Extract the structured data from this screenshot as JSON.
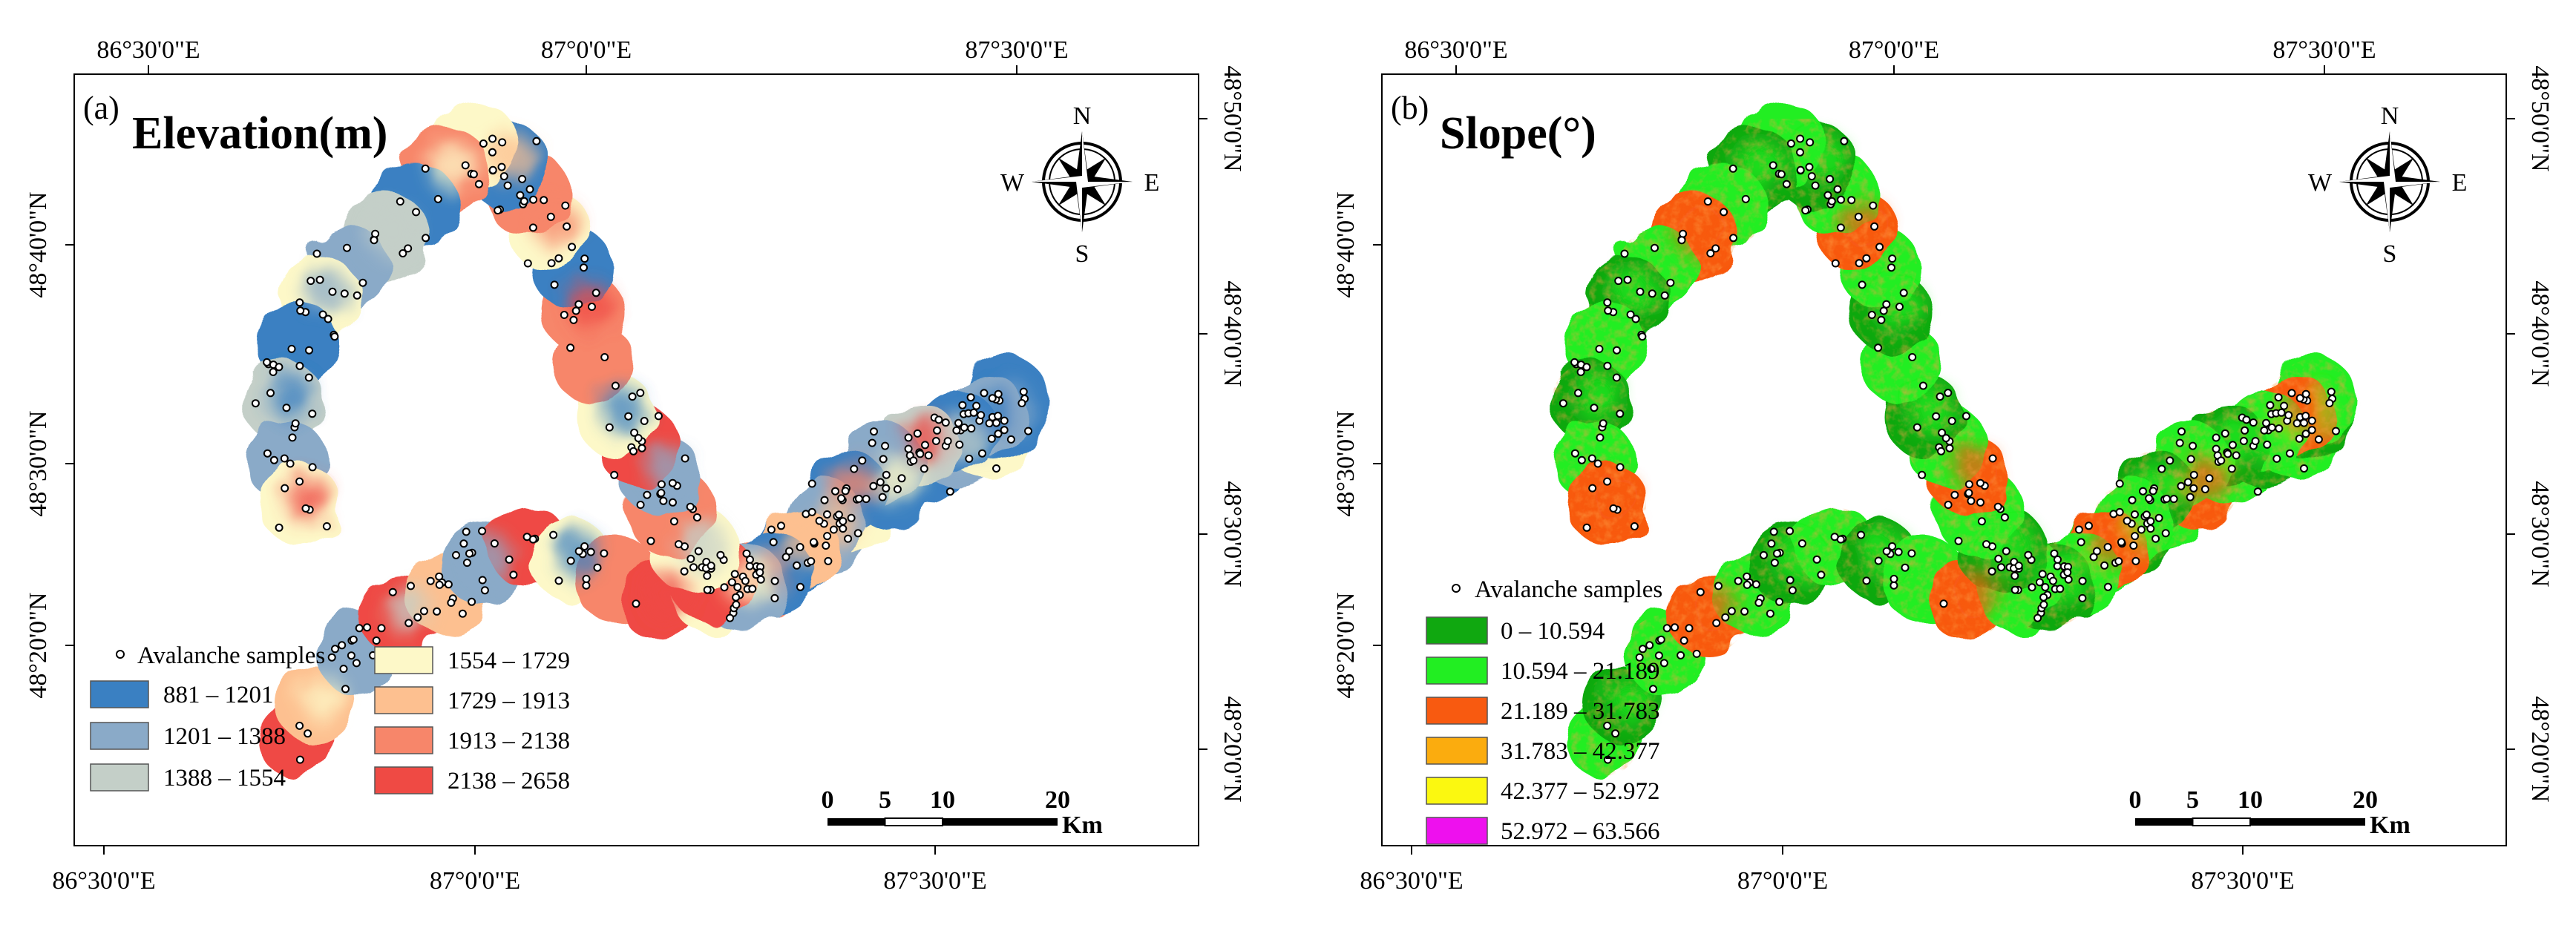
{
  "panels": [
    {
      "label": "(a)",
      "title": "Elevation(m)",
      "lon_labels_top": [
        "86°30'0\"E",
        "87°0'0\"E",
        "87°30'0\"E"
      ],
      "lon_labels_bottom": [
        "86°30'0\"E",
        "87°0'0\"E",
        "87°30'0\"E"
      ],
      "lat_labels_left": [
        "48°40'0\"N",
        "48°30'0\"N",
        "48°20'0\"N"
      ],
      "lat_labels_right": [
        "48°50'0\"N",
        "48°40'0\"N",
        "48°30'0\"N",
        "48°20'0\"N"
      ],
      "legend_samples": "Avalanche samples",
      "legend_classes": [
        {
          "label": "881 – 1201",
          "color": "#3a80c2"
        },
        {
          "label": "1201 – 1388",
          "color": "#8aaac8"
        },
        {
          "label": "1388 – 1554",
          "color": "#c4cfc8"
        },
        {
          "label": "1554 – 1729",
          "color": "#fdf8c8"
        },
        {
          "label": "1729 – 1913",
          "color": "#fdc090"
        },
        {
          "label": "1913 – 2138",
          "color": "#f7866a"
        },
        {
          "label": "2138 – 2658",
          "color": "#ef4a44"
        }
      ],
      "compass": {
        "n": "N",
        "s": "S",
        "e": "E",
        "w": "W"
      },
      "scalebar": {
        "ticks": [
          "0",
          "5",
          "10",
          "20"
        ],
        "unit": "Km"
      }
    },
    {
      "label": "(b)",
      "title": "Slope(°)",
      "lon_labels_top": [
        "86°30'0\"E",
        "87°0'0\"E",
        "87°30'0\"E"
      ],
      "lon_labels_bottom": [
        "86°30'0\"E",
        "87°0'0\"E",
        "87°30'0\"E"
      ],
      "lat_labels_left": [
        "48°40'0\"N",
        "48°30'0\"N",
        "48°20'0\"N"
      ],
      "lat_labels_right": [
        "48°50'0\"N",
        "48°40'0\"N",
        "48°30'0\"N",
        "48°20'0\"N"
      ],
      "legend_samples": "Avalanche samples",
      "legend_classes": [
        {
          "label": "0 – 10.594",
          "color": "#10a810"
        },
        {
          "label": "10.594 – 21.189",
          "color": "#22ee22"
        },
        {
          "label": "21.189 – 31.783",
          "color": "#f85a10"
        },
        {
          "label": "31.783 – 42.377",
          "color": "#fbac0e"
        },
        {
          "label": "42.377 – 52.972",
          "color": "#fbf810"
        },
        {
          "label": "52.972 – 63.566",
          "color": "#ee10ee"
        }
      ],
      "compass": {
        "n": "N",
        "s": "S",
        "e": "E",
        "w": "W"
      },
      "scalebar": {
        "ticks": [
          "0",
          "5",
          "10",
          "20"
        ],
        "unit": "Km"
      }
    }
  ]
}
